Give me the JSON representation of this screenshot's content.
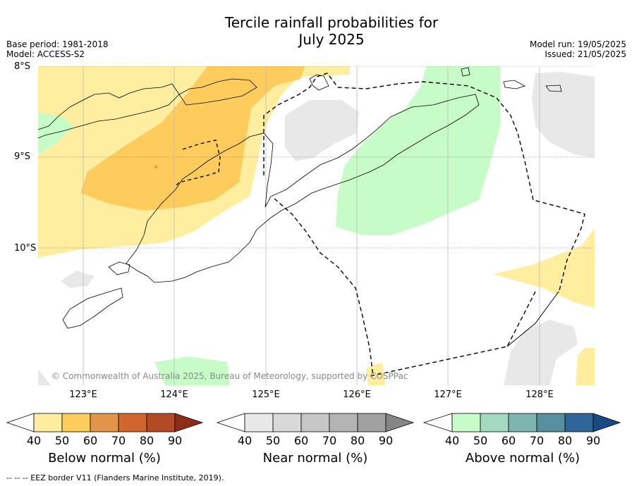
{
  "title_line1": "Tercile rainfall probabilities for",
  "title_line2": "July 2025",
  "base_period": "Base period: 1981-2018",
  "model": "Model: ACCESS-S2",
  "model_run": "Model run: 19/05/2025",
  "issued": "Issued: 21/05/2025",
  "lat_labels": [
    "8°S",
    "9°S",
    "10°S"
  ],
  "lon_labels": [
    "123°E",
    "124°E",
    "125°E",
    "126°E",
    "127°E",
    "128°E"
  ],
  "copyright": "© Commonwealth of Australia 2025, Bureau of Meteorology, supported by COSPPac",
  "colorbars": [
    {
      "label": "Below normal (%)",
      "ticks": [
        "40",
        "50",
        "60",
        "70",
        "80",
        "90"
      ],
      "colors": [
        "#ffeda0",
        "#fecc5c",
        "#e0954a",
        "#d0662e",
        "#b24a25",
        "#8c2d17"
      ]
    },
    {
      "label": "Near normal (%)",
      "ticks": [
        "40",
        "50",
        "60",
        "70",
        "80",
        "90"
      ],
      "colors": [
        "#e8e8e8",
        "#d9d9d9",
        "#c6c6c6",
        "#b4b4b4",
        "#a1a1a1",
        "#858585"
      ]
    },
    {
      "label": "Above normal (%)",
      "ticks": [
        "40",
        "50",
        "60",
        "70",
        "80",
        "90"
      ],
      "colors": [
        "#c7fcc9",
        "#a4d8c0",
        "#7fb5b0",
        "#5890a0",
        "#2e6697",
        "#1a4a85"
      ]
    }
  ],
  "footer": "--  --  -- EEZ border V11 (Flanders Marine Institute, 2019).",
  "legend_colors": {
    "below_40_50": "#ffeda0",
    "below_50_60": "#fecc5c",
    "near_40_50": "#e8e8e8",
    "above_40_50": "#c7fcc9"
  }
}
